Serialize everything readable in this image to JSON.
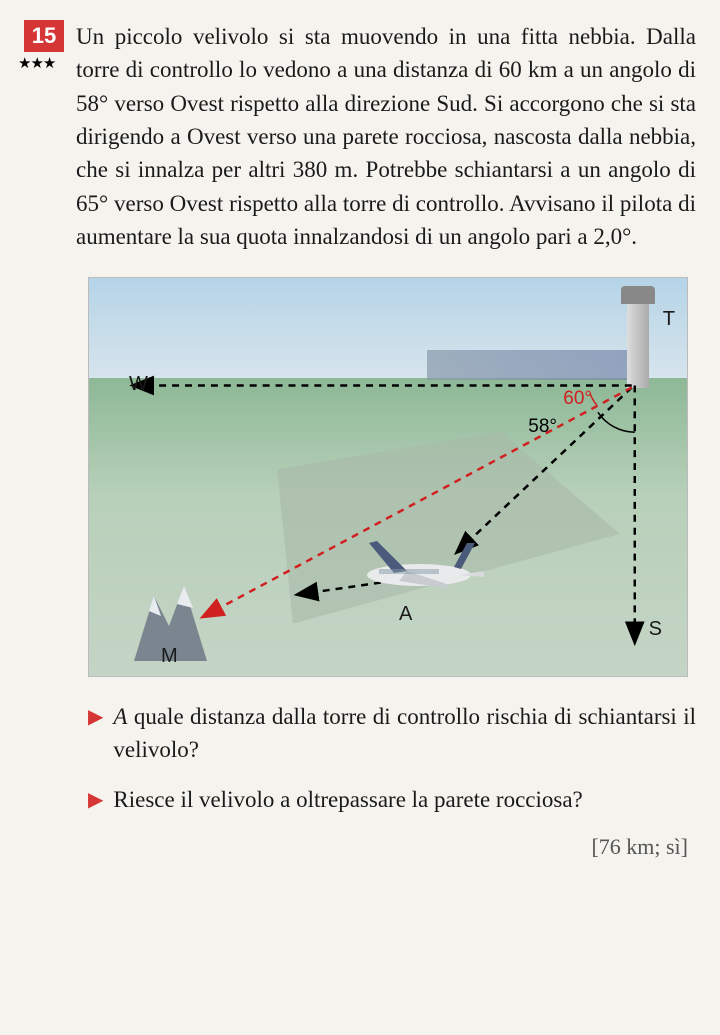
{
  "problem": {
    "number": "15",
    "difficulty": "★★★",
    "text": "Un piccolo velivolo si sta muovendo in una fitta nebbia. Dalla torre di controllo lo vedono a una distanza di 60 km a un angolo di 58° verso Ovest rispetto alla direzione Sud. Si accorgono che si sta dirigendo a Ovest verso una parete rocciosa, nascosta dalla nebbia, che si innalza per altri 380 m. Potrebbe schiantarsi a un angolo di 65° verso Ovest rispetto alla torre di controllo. Avvisano il pilota di aumentare la sua quota innalzandosi di un angolo pari a 2,0°."
  },
  "diagram": {
    "labels": {
      "T": "T",
      "W": "W",
      "M": "M",
      "A": "A",
      "S": "S"
    },
    "angles": {
      "a60": "60°",
      "a58": "58°"
    },
    "colors": {
      "sky_top": "#b5d4e8",
      "ground": "#8db896",
      "red_line": "#d02020",
      "black_line": "#000000"
    }
  },
  "questions": {
    "q1": "A quale distanza dalla torre di controllo rischia di schiantarsi il velivolo?",
    "q2": "Riesce il velivolo a oltrepassare la parete rocciosa?"
  },
  "answer": "[76 km; sì]"
}
